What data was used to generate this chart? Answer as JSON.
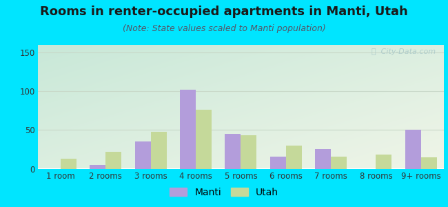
{
  "title": "Rooms in renter-occupied apartments in Manti, Utah",
  "subtitle": "(Note: State values scaled to Manti population)",
  "categories": [
    "1 room",
    "2 rooms",
    "3 rooms",
    "4 rooms",
    "5 rooms",
    "6 rooms",
    "7 rooms",
    "8 rooms",
    "9+ rooms"
  ],
  "manti_values": [
    0,
    5,
    35,
    102,
    45,
    16,
    25,
    0,
    50
  ],
  "utah_values": [
    13,
    22,
    48,
    76,
    43,
    30,
    16,
    18,
    15
  ],
  "manti_color": "#b39ddb",
  "utah_color": "#c5d99a",
  "background_outer": "#00e5ff",
  "background_inner_topleft": "#c8e8d8",
  "background_inner_bottomright": "#f0f5e8",
  "ylim": [
    0,
    160
  ],
  "yticks": [
    0,
    50,
    100,
    150
  ],
  "bar_width": 0.35,
  "title_fontsize": 13,
  "subtitle_fontsize": 9,
  "tick_fontsize": 8.5,
  "legend_fontsize": 10,
  "watermark_text": "ⓘ  City-Data.com",
  "watermark_color": "#aac8c8",
  "grid_color": "#c8d8c8"
}
